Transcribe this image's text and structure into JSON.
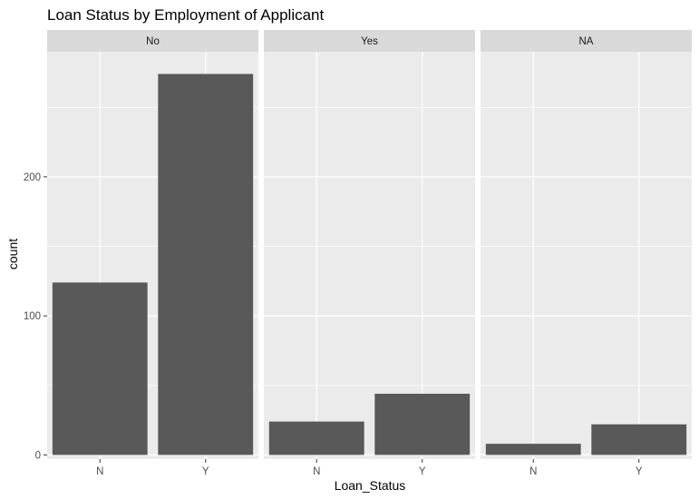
{
  "chart_data": {
    "type": "bar",
    "title": "Loan Status by Employment of Applicant",
    "xlabel": "Loan_Status",
    "ylabel": "count",
    "ylim": [
      -3,
      290
    ],
    "yticks": [
      0,
      100,
      200
    ],
    "grid": true,
    "categories": [
      "N",
      "Y"
    ],
    "facets": [
      {
        "label": "No",
        "values": [
          124,
          274
        ]
      },
      {
        "label": "Yes",
        "values": [
          24,
          44
        ]
      },
      {
        "label": "NA",
        "values": [
          8,
          22
        ]
      }
    ],
    "colors": {
      "bar": "#595959",
      "panel": "#ebebeb",
      "strip": "#d9d9d9",
      "grid_major": "#ffffff",
      "tick_text": "#4d4d4d"
    }
  }
}
